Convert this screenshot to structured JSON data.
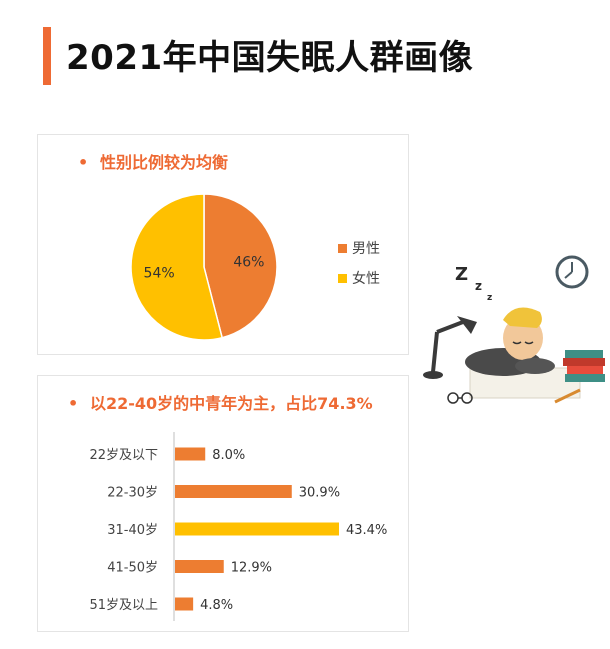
{
  "page": {
    "title": "2021年中国失眠人群画像"
  },
  "gender_card": {
    "heading": "性别比例较为均衡",
    "bullet": "•"
  },
  "age_card": {
    "heading": "以22-40岁的中青年为主，占比74.3%",
    "bullet": "•"
  },
  "colors": {
    "accent": "#ee6a34",
    "male": "#ed7d31",
    "female": "#ffc000",
    "bar": "#ed7d31",
    "bar_highlight": "#ffc000"
  },
  "chart_data": [
    {
      "type": "pie",
      "labels": [
        "男性",
        "女性"
      ],
      "values": [
        46,
        54
      ],
      "data_labels": [
        "46%",
        "54%"
      ],
      "colors": [
        "#ed7d31",
        "#ffc000"
      ],
      "legend": "right"
    },
    {
      "type": "bar",
      "orientation": "horizontal",
      "categories": [
        "22岁及以下",
        "22-30岁",
        "31-40岁",
        "41-50岁",
        "51岁及以上"
      ],
      "values": [
        8.0,
        30.9,
        43.4,
        12.9,
        4.8
      ],
      "data_labels": [
        "8.0%",
        "30.9%",
        "43.4%",
        "12.9%",
        "4.8%"
      ],
      "highlight_index": 2,
      "xlim": [
        0,
        43.4
      ]
    }
  ],
  "illustration": {
    "subject": "person-sleeping-at-desk",
    "zzz": "Z z z"
  }
}
